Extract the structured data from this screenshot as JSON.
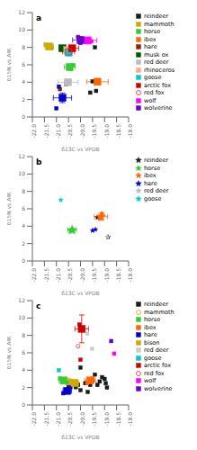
{
  "chart_data": [
    {
      "type": "scatter",
      "title": "a",
      "x_label": "δ13C vs VPDB",
      "y_label": "δ15N vs AIR",
      "xlim": [
        -22.0,
        -18.0
      ],
      "ylim": [
        0,
        12
      ],
      "xticks": [
        {
          "value": -22.0,
          "label": "-22.0"
        },
        -21.5,
        {
          "value": -21.0,
          "label": "-21.0"
        },
        -20.5,
        {
          "value": -20.0,
          "label": "-20.0"
        },
        -19.5,
        {
          "value": -19.0,
          "label": "-19.0"
        },
        -18.5,
        {
          "value": -18.0,
          "label": "-18.0"
        }
      ],
      "yticks": [
        0,
        2,
        4,
        6,
        8,
        10,
        12
      ],
      "legend": "right",
      "series": [
        {
          "name": "reindeer",
          "color": "#1a1a1a",
          "marker": "square",
          "points": [
            [
              -19.5,
              4.1
            ],
            [
              -19.35,
              3.0
            ],
            [
              -19.6,
              2.8
            ],
            [
              -19.4,
              8.0
            ]
          ]
        },
        {
          "name": "mammoth",
          "color": "#ccaa00",
          "marker": "square",
          "points": [
            [
              -21.3,
              8.1
            ],
            [
              -21.45,
              8.3
            ],
            [
              -21.2,
              7.9
            ]
          ],
          "mean": [
            -21.3,
            8.1
          ],
          "x_err": 0.18,
          "y_err": 0.25
        },
        {
          "name": "horse",
          "color": "#33cc33",
          "marker": "square",
          "points": [
            [
              -20.5,
              5.8
            ],
            [
              -20.4,
              5.5
            ],
            [
              -20.3,
              5.95
            ]
          ],
          "mean": [
            -20.45,
            5.75
          ],
          "x_err": 0.22,
          "y_err": 0.28
        },
        {
          "name": "ibex",
          "color": "#ff6600",
          "marker": "square",
          "points": [
            [
              -19.3,
              4.05
            ]
          ],
          "mean": [
            -19.3,
            4.05
          ],
          "x_err": 0.45,
          "y_err": 0.18
        },
        {
          "name": "hare",
          "color": "#8b2500",
          "marker": "square",
          "points": [
            [
              -20.85,
              3.2
            ],
            [
              -20.6,
              3.75
            ]
          ]
        },
        {
          "name": "musk ox",
          "color": "#005500",
          "marker": "square",
          "points": [
            [
              -20.75,
              7.9
            ]
          ],
          "mean": [
            -20.75,
            7.9
          ],
          "x_err": 0.15,
          "y_err": 0.12
        },
        {
          "name": "red deer",
          "color": "#bbbbbb",
          "marker": "square",
          "points": [
            [
              -20.5,
              4.1
            ],
            [
              -20.6,
              3.9
            ]
          ],
          "mean": [
            -20.52,
            4.0
          ],
          "x_err": 0.42,
          "y_err": 0.28
        },
        {
          "name": "rhinoceros",
          "color": "#ffaa77",
          "marker": "square",
          "points": [
            [
              -20.6,
              7.6
            ],
            [
              -20.5,
              7.8
            ]
          ],
          "mean": [
            -20.55,
            7.7
          ],
          "x_err": 0.2,
          "y_err": 0.18
        },
        {
          "name": "goose",
          "color": "#00cccc",
          "marker": "square",
          "points": [
            [
              -20.5,
              7.4
            ]
          ],
          "mean": [
            -20.5,
            7.4
          ],
          "x_err": 0.15,
          "y_err": 0.18
        },
        {
          "name": "arctic fox",
          "color": "#cc0000",
          "marker": "square",
          "points": [
            [
              -20.3,
              7.8
            ],
            [
              -20.4,
              8.0
            ]
          ],
          "mean": [
            -20.35,
            7.9
          ],
          "x_err": 0.28,
          "y_err": 0.28
        },
        {
          "name": "red fox",
          "color": "#ff2222",
          "marker": "open_circle",
          "points": [
            [
              -20.5,
              7.6
            ],
            [
              -20.6,
              7.4
            ]
          ],
          "mean": [
            -20.5,
            7.5
          ],
          "x_err": 0.25,
          "y_err": 0.22
        },
        {
          "name": "wolf",
          "color": "#ff00ff",
          "marker": "square",
          "points": [
            [
              -19.8,
              8.85
            ],
            [
              -19.55,
              8.7
            ]
          ],
          "mean": [
            -19.7,
            8.8
          ],
          "x_err": 0.38,
          "y_err": 0.28
        },
        {
          "name": "wolverine",
          "color": "#6600cc",
          "marker": "square",
          "points": [
            [
              -20.0,
              8.5
            ],
            [
              -20.1,
              9.2
            ],
            [
              -19.9,
              8.9
            ]
          ],
          "mean": [
            -20.0,
            8.85
          ],
          "x_err": 0.33,
          "y_err": 0.38
        },
        {
          "color": "#0000cc",
          "marker": "square",
          "points": [
            [
              -20.7,
              2.3
            ],
            [
              -20.9,
              3.5
            ],
            [
              -21.0,
              1.0
            ]
          ],
          "mean": [
            -20.75,
            2.2
          ],
          "x_err": 0.38,
          "y_err": 0.55
        }
      ]
    },
    {
      "type": "scatter",
      "title": "b",
      "x_label": "δ13C vs VPDB",
      "y_label": "δ15N vs AIR",
      "xlim": [
        -22.0,
        -18.0
      ],
      "ylim": [
        0,
        12
      ],
      "xticks": [
        {
          "value": -22.0,
          "label": "-22.0"
        },
        -21.5,
        {
          "value": -21.0,
          "label": "-21.0"
        },
        -20.5,
        {
          "value": -20.0,
          "label": "-20.0"
        },
        -19.5,
        {
          "value": -19.0,
          "label": "-19.0"
        },
        -18.5,
        {
          "value": -18.0,
          "label": "-18.0"
        }
      ],
      "yticks": [
        0,
        2,
        4,
        6,
        8,
        10,
        12
      ],
      "legend": "right",
      "series": [
        {
          "name": "reindeer",
          "color": "#1a1a1a",
          "marker": "star",
          "points": [
            [
              -19.3,
              5.0
            ],
            [
              -18.85,
              2.75
            ]
          ]
        },
        {
          "name": "horse",
          "color": "#33cc33",
          "marker": "star",
          "points": [
            [
              -20.3,
              3.6
            ],
            [
              -20.42,
              3.5
            ]
          ],
          "mean": [
            -20.35,
            3.55
          ],
          "x_err": 0.18,
          "y_err": 0.1
        },
        {
          "name": "ibex",
          "color": "#ff6600",
          "marker": "star",
          "points": [
            [
              -19.2,
              4.9
            ],
            [
              -19.1,
              5.45
            ]
          ],
          "mean": [
            -19.15,
            5.1
          ],
          "x_err": 0.28,
          "y_err": 0.38
        },
        {
          "name": "hare",
          "color": "#0000cc",
          "marker": "star",
          "points": [
            [
              -19.5,
              3.5
            ],
            [
              -19.38,
              3.62
            ]
          ]
        },
        {
          "name": "red deer",
          "color": "#bbbbbb",
          "marker": "star",
          "points": [
            [
              -18.88,
              2.78
            ]
          ]
        },
        {
          "name": "goose",
          "color": "#00cccc",
          "marker": "star",
          "points": [
            [
              -20.82,
              7.0
            ]
          ]
        }
      ]
    },
    {
      "type": "scatter",
      "title": "c",
      "x_label": "δ13C vs VPDB",
      "y_label": "δ15N vs AIR",
      "xlim": [
        -22.0,
        -18.0
      ],
      "ylim": [
        0,
        12
      ],
      "xticks": [
        {
          "value": -22.0,
          "label": "-22.0"
        },
        -21.5,
        {
          "value": -21.0,
          "label": "-21.0"
        },
        -20.5,
        {
          "value": -20.0,
          "label": "-20.0"
        },
        -19.5,
        {
          "value": -19.0,
          "label": "-19.0"
        },
        -18.5,
        {
          "value": -18.0,
          "label": "-18.0"
        }
      ],
      "yticks": [
        0,
        2,
        4,
        6,
        8,
        10,
        12
      ],
      "legend": "right",
      "series": [
        {
          "name": "reindeer",
          "color": "#1a1a1a",
          "marker": "square",
          "points": [
            [
              -20.0,
              4.3
            ],
            [
              -19.8,
              2.5
            ],
            [
              -19.6,
              2.3
            ],
            [
              -19.5,
              2.85
            ],
            [
              -19.3,
              2.3
            ],
            [
              -19.1,
              3.2
            ],
            [
              -18.9,
              2.0
            ],
            [
              -19.7,
              1.5
            ],
            [
              -20.2,
              2.05
            ],
            [
              -20.5,
              2.1
            ],
            [
              -20.0,
              1.7
            ],
            [
              -20.1,
              2.3
            ],
            [
              -19.4,
              3.5
            ],
            [
              -19.2,
              2.7
            ],
            [
              -19.0,
              3.0
            ],
            [
              -18.95,
              2.5
            ],
            [
              -19.55,
              2.9
            ]
          ]
        },
        {
          "name": "mammoth",
          "color": "#ff9900",
          "marker": "open_circle",
          "points": [
            [
              -20.6,
              2.85
            ],
            [
              -20.5,
              2.5
            ],
            [
              -20.42,
              2.72
            ]
          ],
          "mean": [
            -20.5,
            2.7
          ],
          "x_err": 0.28,
          "y_err": 0.18
        },
        {
          "name": "horse",
          "color": "#33cc33",
          "marker": "square",
          "points": [
            [
              -20.72,
              2.85
            ],
            [
              -20.85,
              3.05
            ],
            [
              -20.55,
              2.55
            ]
          ],
          "mean": [
            -20.7,
            2.82
          ],
          "x_err": 0.2,
          "y_err": 0.2
        },
        {
          "name": "ibex",
          "color": "#ff6600",
          "marker": "square",
          "points": [
            [
              -19.6,
              2.8
            ],
            [
              -19.5,
              3.05
            ],
            [
              -19.72,
              2.52
            ]
          ],
          "mean": [
            -19.6,
            2.82
          ],
          "x_err": 0.22,
          "y_err": 0.18
        },
        {
          "name": "hare",
          "color": "#0000cc",
          "marker": "square",
          "points": [
            [
              -20.52,
              1.5
            ],
            [
              -20.72,
              1.35
            ],
            [
              -20.42,
              2.05
            ]
          ],
          "mean": [
            -20.55,
            1.62
          ],
          "x_err": 0.18,
          "y_err": 0.22
        },
        {
          "name": "bison",
          "color": "#ccaa00",
          "marker": "square",
          "points": [
            [
              -20.25,
              2.55
            ],
            [
              -20.38,
              2.75
            ],
            [
              -20.15,
              2.35
            ]
          ],
          "mean": [
            -20.25,
            2.55
          ],
          "x_err": 0.18,
          "y_err": 0.2
        },
        {
          "name": "red deer",
          "color": "#cccccc",
          "marker": "square",
          "points": [
            [
              -19.72,
              8.2
            ],
            [
              -19.52,
              6.45
            ]
          ]
        },
        {
          "name": "goose",
          "color": "#00cccc",
          "marker": "square",
          "points": [
            [
              -20.9,
              4.0
            ]
          ]
        },
        {
          "name": "arctic fox",
          "color": "#cc0000",
          "marker": "square",
          "points": [
            [
              -19.95,
              8.75
            ],
            [
              -20.05,
              9.25
            ],
            [
              -20.0,
              5.2
            ]
          ],
          "mean": [
            -19.95,
            8.75
          ],
          "x_err": 0.28,
          "y_err": 1.6
        },
        {
          "name": "red fox",
          "color": "#ff2222",
          "marker": "open_circle",
          "points": [
            [
              -20.1,
              6.75
            ]
          ]
        },
        {
          "name": "wolf",
          "color": "#ff00ff",
          "marker": "square",
          "points": [
            [
              -18.6,
              5.9
            ]
          ]
        },
        {
          "name": "wolverine",
          "color": "#6600cc",
          "marker": "square",
          "points": [
            [
              -18.72,
              7.35
            ]
          ]
        }
      ]
    }
  ]
}
